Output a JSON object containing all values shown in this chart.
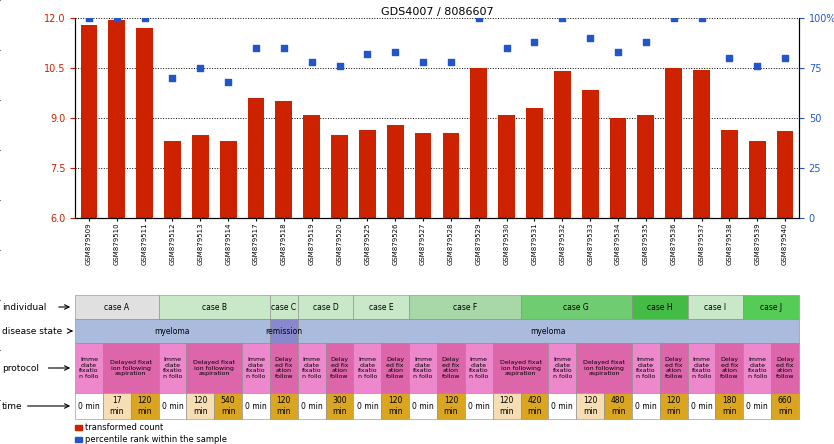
{
  "title": "GDS4007 / 8086607",
  "samples": [
    "GSM879509",
    "GSM879510",
    "GSM879511",
    "GSM879512",
    "GSM879513",
    "GSM879514",
    "GSM879517",
    "GSM879518",
    "GSM879519",
    "GSM879520",
    "GSM879525",
    "GSM879526",
    "GSM879527",
    "GSM879528",
    "GSM879529",
    "GSM879530",
    "GSM879531",
    "GSM879532",
    "GSM879533",
    "GSM879534",
    "GSM879535",
    "GSM879536",
    "GSM879537",
    "GSM879538",
    "GSM879539",
    "GSM879540"
  ],
  "bar_values": [
    11.8,
    11.95,
    11.7,
    8.3,
    8.5,
    8.3,
    9.6,
    9.5,
    9.1,
    8.5,
    8.65,
    8.8,
    8.55,
    8.55,
    10.5,
    9.1,
    9.3,
    10.4,
    9.85,
    9.0,
    9.1,
    10.5,
    10.45,
    8.65,
    8.3,
    8.6
  ],
  "scatter_values": [
    100,
    100,
    100,
    70,
    75,
    68,
    85,
    85,
    78,
    76,
    82,
    83,
    78,
    78,
    100,
    85,
    88,
    100,
    90,
    83,
    88,
    100,
    100,
    80,
    76,
    80
  ],
  "ylim_left": [
    6,
    12
  ],
  "ylim_right": [
    0,
    100
  ],
  "yticks_left": [
    6,
    7.5,
    9,
    10.5,
    12
  ],
  "yticks_right": [
    0,
    25,
    50,
    75,
    100
  ],
  "bar_color": "#cc2200",
  "scatter_color": "#2255cc",
  "individual_groups": [
    {
      "text": "case A",
      "start": 0,
      "end": 3,
      "color": "#e0e0e0"
    },
    {
      "text": "case B",
      "start": 3,
      "end": 7,
      "color": "#c8e8c8"
    },
    {
      "text": "case C",
      "start": 7,
      "end": 8,
      "color": "#c8e8c8"
    },
    {
      "text": "case D",
      "start": 8,
      "end": 10,
      "color": "#c8e8c8"
    },
    {
      "text": "case E",
      "start": 10,
      "end": 12,
      "color": "#c8e8c8"
    },
    {
      "text": "case F",
      "start": 12,
      "end": 16,
      "color": "#a8d8a8"
    },
    {
      "text": "case G",
      "start": 16,
      "end": 20,
      "color": "#70cc70"
    },
    {
      "text": "case H",
      "start": 20,
      "end": 22,
      "color": "#44bb44"
    },
    {
      "text": "case I",
      "start": 22,
      "end": 24,
      "color": "#c8e8c8"
    },
    {
      "text": "case J",
      "start": 24,
      "end": 26,
      "color": "#55cc55"
    }
  ],
  "disease_groups": [
    {
      "text": "myeloma",
      "start": 0,
      "end": 7,
      "color": "#aabbdd"
    },
    {
      "text": "remission",
      "start": 7,
      "end": 8,
      "color": "#8888cc"
    },
    {
      "text": "myeloma",
      "start": 8,
      "end": 26,
      "color": "#aabbdd"
    }
  ],
  "protocol_groups": [
    {
      "text": "Imme\ndiate\nfixatio\nn follo",
      "start": 0,
      "end": 1,
      "color": "#ee88cc"
    },
    {
      "text": "Delayed fixat\nion following\naspiration",
      "start": 1,
      "end": 3,
      "color": "#dd66aa"
    },
    {
      "text": "Imme\ndiate\nfixatio\nn follo",
      "start": 3,
      "end": 4,
      "color": "#ee88cc"
    },
    {
      "text": "Delayed fixat\nion following\naspiration",
      "start": 4,
      "end": 6,
      "color": "#dd66aa"
    },
    {
      "text": "Imme\ndiate\nfixatio\nn follo",
      "start": 6,
      "end": 7,
      "color": "#ee88cc"
    },
    {
      "text": "Delay\ned fix\nation\nfollow",
      "start": 7,
      "end": 8,
      "color": "#dd66aa"
    },
    {
      "text": "Imme\ndiate\nfixatio\nn follo",
      "start": 8,
      "end": 9,
      "color": "#ee88cc"
    },
    {
      "text": "Delay\ned fix\nation\nfollow",
      "start": 9,
      "end": 10,
      "color": "#dd66aa"
    },
    {
      "text": "Imme\ndiate\nfixatio\nn follo",
      "start": 10,
      "end": 11,
      "color": "#ee88cc"
    },
    {
      "text": "Delay\ned fix\nation\nfollow",
      "start": 11,
      "end": 12,
      "color": "#dd66aa"
    },
    {
      "text": "Imme\ndiate\nfixatio\nn follo",
      "start": 12,
      "end": 13,
      "color": "#ee88cc"
    },
    {
      "text": "Delay\ned fix\nation\nfollow",
      "start": 13,
      "end": 14,
      "color": "#dd66aa"
    },
    {
      "text": "Imme\ndiate\nfixatio\nn follo",
      "start": 14,
      "end": 15,
      "color": "#ee88cc"
    },
    {
      "text": "Delayed fixat\nion following\naspiration",
      "start": 15,
      "end": 17,
      "color": "#dd66aa"
    },
    {
      "text": "Imme\ndiate\nfixatio\nn follo",
      "start": 17,
      "end": 18,
      "color": "#ee88cc"
    },
    {
      "text": "Delayed fixat\nion following\naspiration",
      "start": 18,
      "end": 20,
      "color": "#dd66aa"
    },
    {
      "text": "Imme\ndiate\nfixatio\nn follo",
      "start": 20,
      "end": 21,
      "color": "#ee88cc"
    },
    {
      "text": "Delay\ned fix\nation\nfollow",
      "start": 21,
      "end": 22,
      "color": "#dd66aa"
    },
    {
      "text": "Imme\ndiate\nfixatio\nn follo",
      "start": 22,
      "end": 23,
      "color": "#ee88cc"
    },
    {
      "text": "Delay\ned fix\nation\nfollow",
      "start": 23,
      "end": 24,
      "color": "#dd66aa"
    },
    {
      "text": "Imme\ndiate\nfixatio\nn follo",
      "start": 24,
      "end": 25,
      "color": "#ee88cc"
    },
    {
      "text": "Delay\ned fix\nation\nfollow",
      "start": 25,
      "end": 26,
      "color": "#dd66aa"
    }
  ],
  "time_cells": [
    {
      "text": "0 min",
      "color": "#ffffff"
    },
    {
      "text": "17\nmin",
      "color": "#f5deb3"
    },
    {
      "text": "120\nmin",
      "color": "#daa520"
    },
    {
      "text": "0 min",
      "color": "#ffffff"
    },
    {
      "text": "120\nmin",
      "color": "#f5deb3"
    },
    {
      "text": "540\nmin",
      "color": "#daa520"
    },
    {
      "text": "0 min",
      "color": "#ffffff"
    },
    {
      "text": "120\nmin",
      "color": "#daa520"
    },
    {
      "text": "0 min",
      "color": "#ffffff"
    },
    {
      "text": "300\nmin",
      "color": "#daa520"
    },
    {
      "text": "0 min",
      "color": "#ffffff"
    },
    {
      "text": "120\nmin",
      "color": "#daa520"
    },
    {
      "text": "0 min",
      "color": "#ffffff"
    },
    {
      "text": "120\nmin",
      "color": "#daa520"
    },
    {
      "text": "0 min",
      "color": "#ffffff"
    },
    {
      "text": "120\nmin",
      "color": "#f5deb3"
    },
    {
      "text": "420\nmin",
      "color": "#daa520"
    },
    {
      "text": "0 min",
      "color": "#ffffff"
    },
    {
      "text": "120\nmin",
      "color": "#f5deb3"
    },
    {
      "text": "480\nmin",
      "color": "#daa520"
    },
    {
      "text": "0 min",
      "color": "#ffffff"
    },
    {
      "text": "120\nmin",
      "color": "#daa520"
    },
    {
      "text": "0 min",
      "color": "#ffffff"
    },
    {
      "text": "180\nmin",
      "color": "#daa520"
    },
    {
      "text": "0 min",
      "color": "#ffffff"
    },
    {
      "text": "660\nmin",
      "color": "#daa520"
    }
  ],
  "row_labels": [
    "individual",
    "disease state",
    "protocol",
    "time"
  ],
  "legend_items": [
    {
      "label": "transformed count",
      "color": "#cc2200"
    },
    {
      "label": "percentile rank within the sample",
      "color": "#2255cc"
    }
  ]
}
